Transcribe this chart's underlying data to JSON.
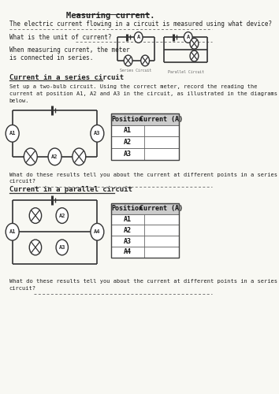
{
  "title": "Measuring current.",
  "bg_color": "#f8f8f3",
  "text_color": "#222222",
  "q1": "The electric current flowing in a circuit is measured using what device?",
  "q2": "What is the unit of current?",
  "q3_line1": "When measuring current, the meter",
  "q3_line2": "is connected in series.",
  "section1_title": "Current in a series circuit",
  "section1_desc1": "Set up a two-bulb circuit. Using the correct meter, record the reading the",
  "section1_desc2": "current at position A1, A2 and A3 in the circuit, as illustrated in the diagrams",
  "section1_desc3": "below.",
  "series_table_header": [
    "Position",
    "Current (A)"
  ],
  "series_table_rows": [
    "A1",
    "A2",
    "A3"
  ],
  "series_q1": "What do these results tell you about the current at different points in a series",
  "series_q2": "circuit?",
  "section2_title": "Current in a parallel circuit",
  "parallel_table_header": [
    "Position",
    "Current (A)"
  ],
  "parallel_table_rows": [
    "A1",
    "A2",
    "A3",
    "A4"
  ],
  "parallel_q1": "What do these results tell you about the current at different points in a series",
  "parallel_q2": "circuit?",
  "series_circuit_label": "Series Circuit",
  "parallel_circuit_label": "Parallel Circuit"
}
